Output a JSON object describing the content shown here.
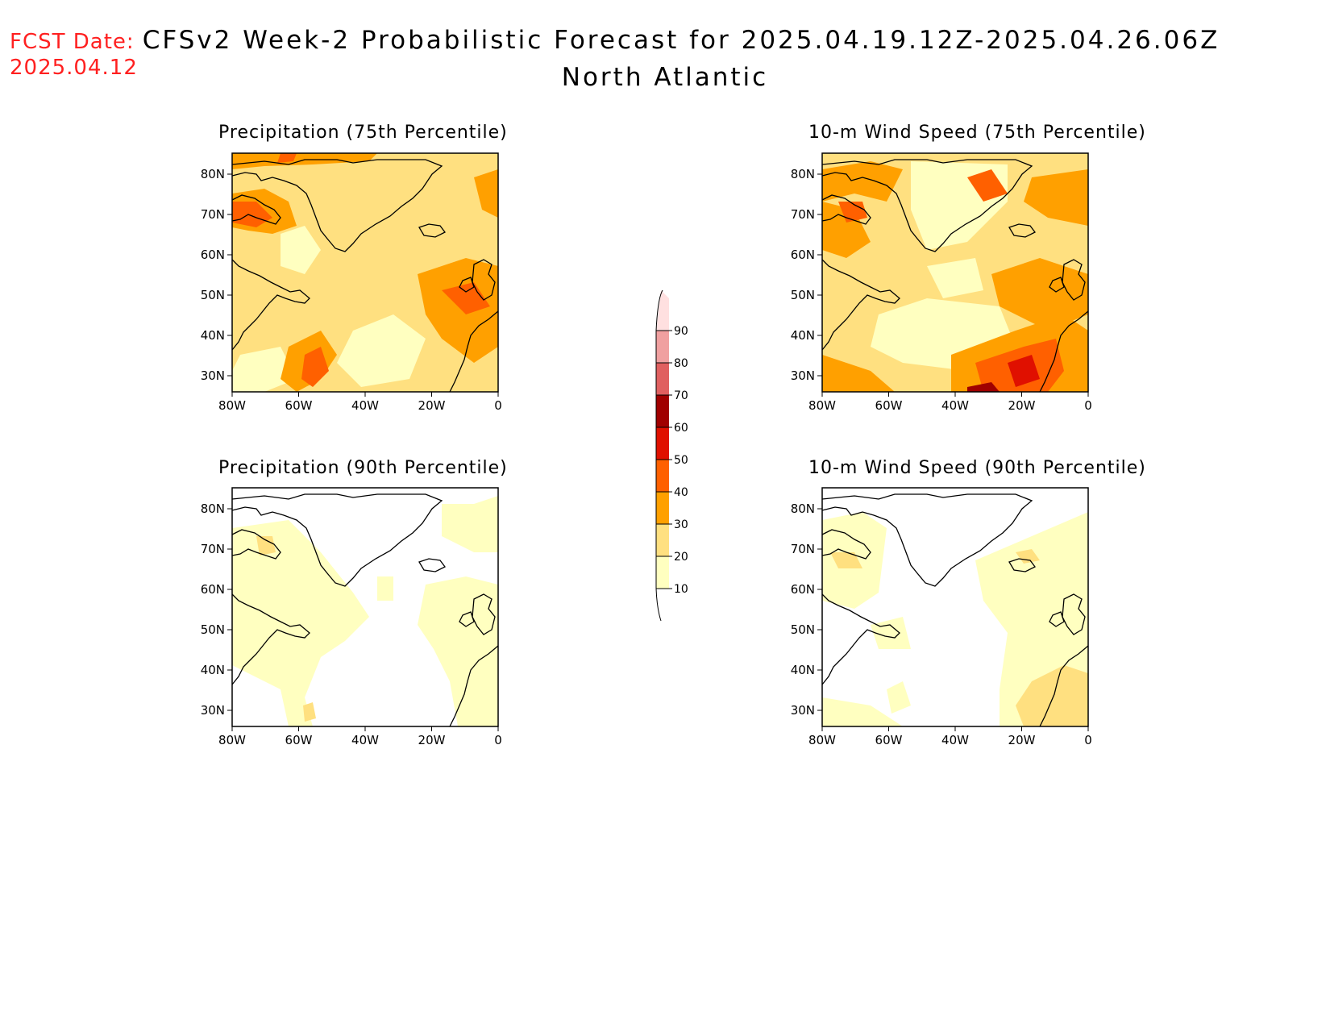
{
  "header": {
    "fcst_label": "FCST Date:",
    "fcst_date": "2025.04.12",
    "title": "CFSv2 Week-2 Probabilistic Forecast for 2025.04.19.12Z-2025.04.26.06Z",
    "subtitle": "North Atlantic"
  },
  "palette": [
    "#ffffc0",
    "#ffe080",
    "#ffa000",
    "#ff6000",
    "#e01000",
    "#a00000",
    "#e06060",
    "#f0a0a0",
    "#ffe0e0"
  ],
  "colorbar": {
    "levels": [
      "10",
      "20",
      "30",
      "40",
      "50",
      "60",
      "70",
      "80",
      "90"
    ]
  },
  "axes": {
    "lat_labels": [
      "80N",
      "70N",
      "60N",
      "50N",
      "40N",
      "30N"
    ],
    "lon_labels": [
      "80W",
      "60W",
      "40W",
      "20W",
      "0"
    ]
  },
  "panels": [
    {
      "id": "precip-75",
      "title": "Precipitation (75th Percentile)"
    },
    {
      "id": "wind-75",
      "title": "10-m Wind Speed (75th Percentile)"
    },
    {
      "id": "precip-90",
      "title": "Precipitation (90th Percentile)"
    },
    {
      "id": "wind-90",
      "title": "10-m Wind Speed (90th Percentile)"
    }
  ]
}
